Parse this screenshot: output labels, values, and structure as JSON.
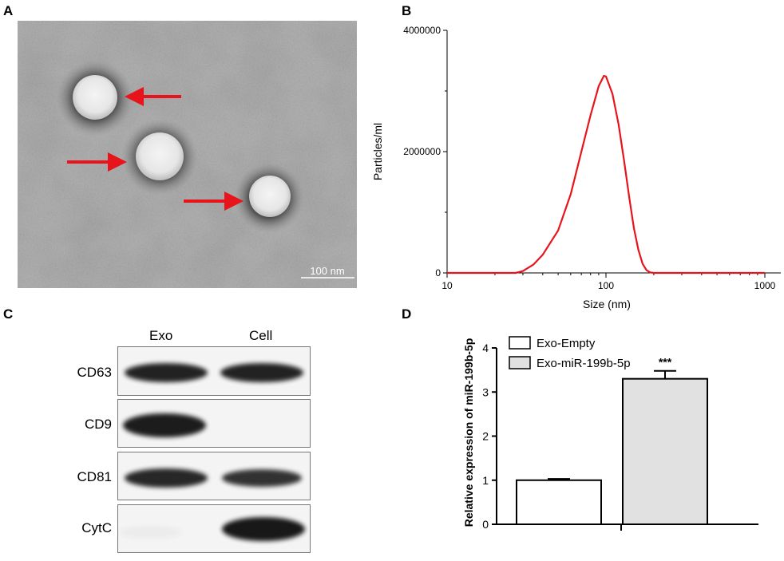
{
  "panels": {
    "a": "A",
    "b": "B",
    "c": "C",
    "d": "D"
  },
  "panel_a": {
    "scale_bar_label": "100 nm",
    "arrow_color": "#e8141b"
  },
  "panel_b": {
    "chart_data": {
      "type": "line",
      "ylabel": "Particles/ml",
      "xlabel": "Size (nm)",
      "x_scale": "log",
      "xlim": [
        10,
        1000
      ],
      "ylim": [
        0,
        4000000
      ],
      "x_ticks": [
        "10",
        "100",
        "1000"
      ],
      "y_ticks": [
        "0",
        "2000000",
        "4000000"
      ],
      "color": "#e8141b",
      "series": [
        {
          "x": [
            10,
            20,
            27,
            30,
            35,
            40,
            50,
            60,
            70,
            80,
            90,
            97,
            100,
            110,
            120,
            130,
            140,
            150,
            160,
            170,
            180,
            190,
            200,
            220,
            300,
            500,
            1000
          ],
          "y": [
            0,
            0,
            0,
            30000,
            140000,
            300000,
            700000,
            1300000,
            2000000,
            2600000,
            3080000,
            3250000,
            3240000,
            2950000,
            2450000,
            1850000,
            1250000,
            740000,
            380000,
            150000,
            45000,
            8000,
            0,
            0,
            0,
            0,
            0
          ]
        }
      ]
    }
  },
  "panel_c": {
    "columns": [
      "Exo",
      "Cell"
    ],
    "rows": [
      {
        "label": "CD63",
        "exo": 0.92,
        "cell": 0.92
      },
      {
        "label": "CD9",
        "exo": 0.95,
        "cell": 0.0
      },
      {
        "label": "CD81",
        "exo": 0.9,
        "cell": 0.85
      },
      {
        "label": "CytC",
        "exo": 0.04,
        "cell": 0.97
      }
    ]
  },
  "panel_d": {
    "chart_data": {
      "type": "bar",
      "ylabel": "Relative expression of miR-199b-5p",
      "ylim": [
        0,
        4
      ],
      "y_ticks": [
        "0",
        "1",
        "2",
        "3",
        "4"
      ],
      "categories": [
        "Exo-Empty",
        "Exo-miR-199b-5p"
      ],
      "values": [
        1.0,
        3.3
      ],
      "errors": [
        0.03,
        0.18
      ],
      "fills": [
        "#ffffff",
        "#e1e1e1"
      ],
      "significance": [
        "",
        "***"
      ],
      "legend": [
        "Exo-Empty",
        "Exo-miR-199b-5p"
      ]
    }
  }
}
